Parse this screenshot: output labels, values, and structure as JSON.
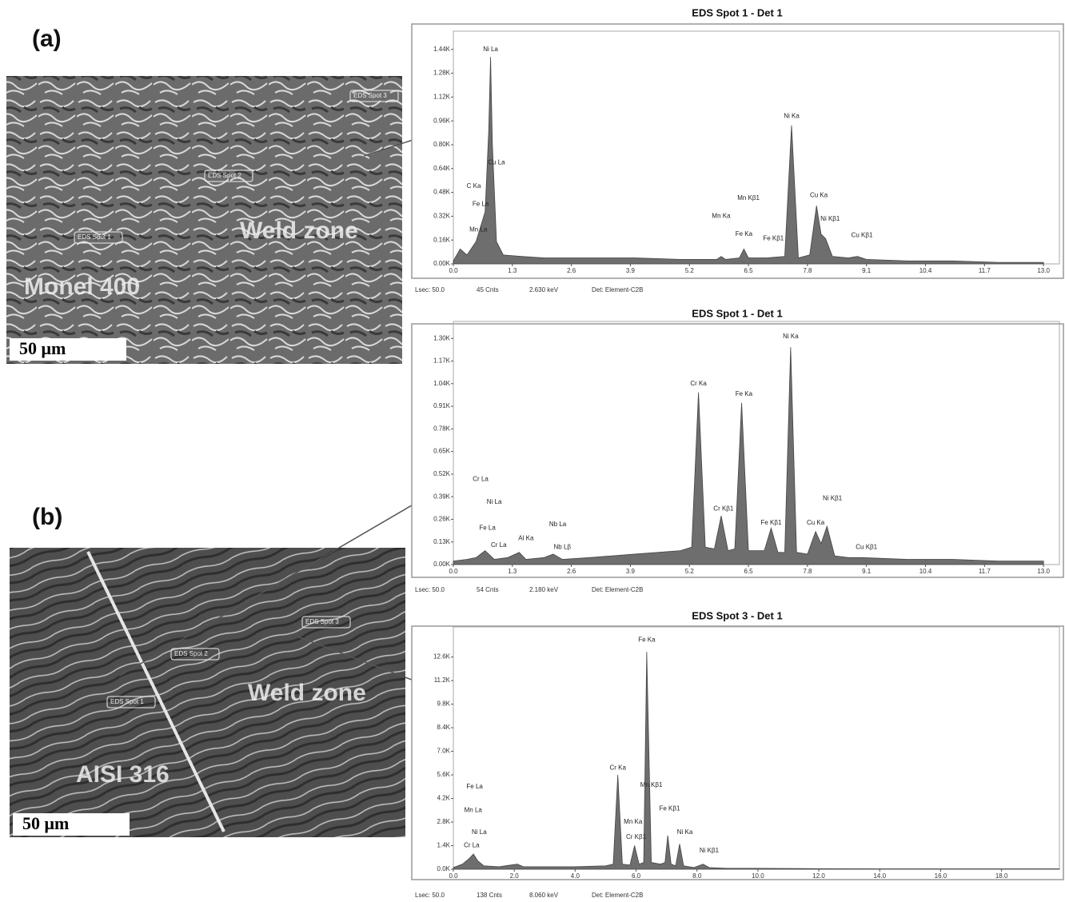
{
  "figure": {
    "panels": [
      {
        "label": "(a)",
        "material": "Monel 400",
        "zone": "Weld zone",
        "scale_bar": "50 μm",
        "spots": [
          "EDS Spot 1",
          "EDS Spot 2",
          "EDS Spot 3"
        ]
      },
      {
        "label": "(b)",
        "material": "AISI 316",
        "zone": "Weld zone",
        "scale_bar": "50 μm",
        "spots": [
          "EDS Spot 1",
          "EDS Spot 2",
          "EDS Spot 3"
        ]
      }
    ]
  },
  "chart_data": [
    {
      "type": "area",
      "title": "EDS Spot 1 - Det 1",
      "color": "#6e6e6e",
      "x": [
        0,
        0.15,
        0.3,
        0.5,
        0.6,
        0.7,
        0.78,
        0.82,
        0.86,
        0.95,
        1.1,
        1.5,
        2.0,
        3.0,
        4.0,
        5.0,
        5.8,
        5.9,
        6.0,
        6.3,
        6.4,
        6.5,
        6.9,
        7.3,
        7.45,
        7.6,
        7.85,
        8.0,
        8.1,
        8.2,
        8.35,
        8.7,
        8.9,
        9.1,
        10,
        11,
        12,
        13
      ],
      "values": [
        0.02,
        0.1,
        0.06,
        0.15,
        0.25,
        0.35,
        0.9,
        1.39,
        0.8,
        0.15,
        0.06,
        0.05,
        0.04,
        0.04,
        0.04,
        0.03,
        0.03,
        0.05,
        0.03,
        0.04,
        0.1,
        0.04,
        0.04,
        0.05,
        0.93,
        0.04,
        0.06,
        0.39,
        0.2,
        0.17,
        0.05,
        0.04,
        0.05,
        0.03,
        0.02,
        0.02,
        0.01,
        0.01
      ],
      "xlim": [
        0,
        13.35
      ],
      "ylim": [
        0,
        1.53
      ],
      "xticks": [
        {
          "value": 0,
          "label": "0.0"
        },
        1.3,
        2.6,
        3.9,
        5.2,
        6.5,
        7.8,
        9.1,
        10.4,
        11.7,
        {
          "value": 13,
          "label": "13.0"
        }
      ],
      "yticks": [
        {
          "value": 0,
          "label": "0.00K"
        },
        {
          "value": 0.16,
          "label": "0.16K"
        },
        {
          "value": 0.32,
          "label": "0.32K"
        },
        {
          "value": 0.48,
          "label": "0.48K"
        },
        {
          "value": 0.64,
          "label": "0.64K"
        },
        {
          "value": 0.8,
          "label": "0.80K"
        },
        {
          "value": 0.96,
          "label": "0.96K"
        },
        {
          "value": 1.12,
          "label": "1.12K"
        },
        {
          "value": 1.28,
          "label": "1.28K"
        },
        {
          "value": 1.44,
          "label": "1.44K"
        }
      ],
      "annotations": [
        {
          "text": "Ni La",
          "x": 0.82,
          "y": 1.44
        },
        {
          "text": "Cu La",
          "x": 0.95,
          "y": 0.68
        },
        {
          "text": "C Ka",
          "x": 0.45,
          "y": 0.52
        },
        {
          "text": "Fe La",
          "x": 0.6,
          "y": 0.4
        },
        {
          "text": "Mn La",
          "x": 0.55,
          "y": 0.23
        },
        {
          "text": "Ni Ka",
          "x": 7.45,
          "y": 0.99
        },
        {
          "text": "Mn Kβ1",
          "x": 6.5,
          "y": 0.44
        },
        {
          "text": "Mn Ka",
          "x": 5.9,
          "y": 0.32
        },
        {
          "text": "Fe Ka",
          "x": 6.4,
          "y": 0.2
        },
        {
          "text": "Fe Kβ1",
          "x": 7.05,
          "y": 0.17
        },
        {
          "text": "Cu Ka",
          "x": 8.05,
          "y": 0.46
        },
        {
          "text": "Ni Kβ1",
          "x": 8.3,
          "y": 0.3
        },
        {
          "text": "Cu Kβ1",
          "x": 9.0,
          "y": 0.19
        }
      ],
      "footer": [
        "Lsec: 50.0",
        "45 Cnts",
        "2.630 keV",
        "Det: Element-C2B"
      ]
    },
    {
      "type": "area",
      "title": "EDS Spot 1 - Det 1",
      "color": "#6e6e6e",
      "x": [
        0,
        0.3,
        0.5,
        0.6,
        0.7,
        0.9,
        1.2,
        1.45,
        1.6,
        2.0,
        2.2,
        2.4,
        3.0,
        4.0,
        5.0,
        5.25,
        5.4,
        5.55,
        5.75,
        5.9,
        6.05,
        6.2,
        6.35,
        6.5,
        6.85,
        7.0,
        7.15,
        7.3,
        7.43,
        7.56,
        7.8,
        7.98,
        8.1,
        8.23,
        8.4,
        8.7,
        9.0,
        10,
        11,
        12,
        13
      ],
      "values": [
        0.02,
        0.03,
        0.04,
        0.06,
        0.08,
        0.03,
        0.04,
        0.07,
        0.03,
        0.04,
        0.06,
        0.03,
        0.04,
        0.06,
        0.08,
        0.1,
        0.99,
        0.1,
        0.09,
        0.28,
        0.08,
        0.09,
        0.93,
        0.08,
        0.08,
        0.21,
        0.07,
        0.07,
        1.25,
        0.07,
        0.06,
        0.19,
        0.12,
        0.22,
        0.05,
        0.04,
        0.04,
        0.03,
        0.03,
        0.02,
        0.02
      ],
      "xlim": [
        0,
        13.35
      ],
      "ylim": [
        0,
        1.37
      ],
      "xticks": [
        {
          "value": 0,
          "label": "0.0"
        },
        1.3,
        2.6,
        3.9,
        5.2,
        6.5,
        7.8,
        9.1,
        10.4,
        11.7,
        {
          "value": 13,
          "label": "13.0"
        }
      ],
      "yticks": [
        {
          "value": 0,
          "label": "0.00K"
        },
        {
          "value": 0.13,
          "label": "0.13K"
        },
        {
          "value": 0.26,
          "label": "0.26K"
        },
        {
          "value": 0.39,
          "label": "0.39K"
        },
        {
          "value": 0.52,
          "label": "0.52K"
        },
        {
          "value": 0.65,
          "label": "0.65K"
        },
        {
          "value": 0.78,
          "label": "0.78K"
        },
        {
          "value": 0.91,
          "label": "0.91K"
        },
        {
          "value": 1.04,
          "label": "1.04K"
        },
        {
          "value": 1.17,
          "label": "1.17K"
        },
        {
          "value": 1.3,
          "label": "1.30K"
        }
      ],
      "annotations": [
        {
          "text": "Cr La",
          "x": 0.6,
          "y": 0.49
        },
        {
          "text": "Ni La",
          "x": 0.9,
          "y": 0.36
        },
        {
          "text": "Fe La",
          "x": 0.75,
          "y": 0.21
        },
        {
          "text": "Cr La",
          "x": 1.0,
          "y": 0.11
        },
        {
          "text": "Al Ka",
          "x": 1.6,
          "y": 0.15
        },
        {
          "text": "Nb La",
          "x": 2.3,
          "y": 0.23
        },
        {
          "text": "Nb Lβ",
          "x": 2.4,
          "y": 0.1
        },
        {
          "text": "Cr Ka",
          "x": 5.4,
          "y": 1.04
        },
        {
          "text": "Cr Kβ1",
          "x": 5.95,
          "y": 0.32
        },
        {
          "text": "Fe Ka",
          "x": 6.4,
          "y": 0.98
        },
        {
          "text": "Fe Kβ1",
          "x": 7.0,
          "y": 0.24
        },
        {
          "text": "Ni Ka",
          "x": 7.43,
          "y": 1.31
        },
        {
          "text": "Ni Kβ1",
          "x": 8.35,
          "y": 0.38
        },
        {
          "text": "Cu Ka",
          "x": 7.98,
          "y": 0.24
        },
        {
          "text": "Cu Kβ1",
          "x": 9.1,
          "y": 0.1
        }
      ],
      "footer": [
        "Lsec: 50.0",
        "54 Cnts",
        "2.180 keV",
        "Det: Element-C2B"
      ]
    },
    {
      "type": "area",
      "title": "EDS Spot 3 - Det 1",
      "color": "#6e6e6e",
      "x": [
        0,
        0.3,
        0.5,
        0.66,
        0.8,
        1.0,
        1.5,
        2.1,
        2.3,
        3.0,
        4.0,
        5.0,
        5.25,
        5.4,
        5.55,
        5.8,
        5.95,
        6.1,
        6.25,
        6.35,
        6.5,
        6.8,
        6.95,
        7.04,
        7.15,
        7.3,
        7.43,
        7.56,
        7.9,
        8.2,
        8.4,
        9,
        10,
        12,
        14,
        16,
        18,
        19.9
      ],
      "values": [
        0.1,
        0.3,
        0.6,
        0.9,
        0.5,
        0.2,
        0.15,
        0.3,
        0.15,
        0.15,
        0.15,
        0.2,
        0.3,
        5.6,
        0.3,
        0.25,
        1.4,
        0.3,
        0.4,
        12.9,
        0.4,
        0.3,
        0.4,
        2.0,
        0.3,
        0.2,
        1.5,
        0.2,
        0.1,
        0.3,
        0.1,
        0.05,
        0.05,
        0.03,
        0.02,
        0.02,
        0.02,
        0.02
      ],
      "xlim": [
        0,
        19.9
      ],
      "ylim": [
        0,
        14.1
      ],
      "xticks": [
        {
          "value": 0,
          "label": "0.0"
        },
        {
          "value": 2,
          "label": "2.0"
        },
        {
          "value": 4,
          "label": "4.0"
        },
        {
          "value": 6,
          "label": "6.0"
        },
        {
          "value": 8,
          "label": "8.0"
        },
        {
          "value": 10,
          "label": "10.0"
        },
        {
          "value": 12,
          "label": "12.0"
        },
        {
          "value": 14,
          "label": "14.0"
        },
        {
          "value": 16,
          "label": "16.0"
        },
        {
          "value": 18,
          "label": "18.0"
        }
      ],
      "yticks": [
        {
          "value": 0,
          "label": "0.0K"
        },
        {
          "value": 1.4,
          "label": "1.4K"
        },
        {
          "value": 2.8,
          "label": "2.8K"
        },
        {
          "value": 4.2,
          "label": "4.2K"
        },
        {
          "value": 5.6,
          "label": "5.6K"
        },
        {
          "value": 7.0,
          "label": "7.0K"
        },
        {
          "value": 8.4,
          "label": "8.4K"
        },
        {
          "value": 9.8,
          "label": "9.8K"
        },
        {
          "value": 11.2,
          "label": "11.2K"
        },
        {
          "value": 12.6,
          "label": "12.6K"
        }
      ],
      "annotations": [
        {
          "text": "Fe Ka",
          "x": 6.35,
          "y": 13.6
        },
        {
          "text": "Cr Ka",
          "x": 5.4,
          "y": 6.0
        },
        {
          "text": "Mn Kβ1",
          "x": 6.5,
          "y": 5.0
        },
        {
          "text": "Fe Kβ1",
          "x": 7.1,
          "y": 3.6
        },
        {
          "text": "Mn Ka",
          "x": 5.9,
          "y": 2.8
        },
        {
          "text": "Cr Kβ1",
          "x": 6.0,
          "y": 1.9
        },
        {
          "text": "Ni Ka",
          "x": 7.6,
          "y": 2.2
        },
        {
          "text": "Ni Kβ1",
          "x": 8.4,
          "y": 1.1
        },
        {
          "text": "Fe La",
          "x": 0.7,
          "y": 4.9
        },
        {
          "text": "Mn La",
          "x": 0.65,
          "y": 3.5
        },
        {
          "text": "Ni La",
          "x": 0.85,
          "y": 2.2
        },
        {
          "text": "Cr La",
          "x": 0.6,
          "y": 1.4
        }
      ],
      "footer": [
        "Lsec: 50.0",
        "138 Cnts",
        "8.060 keV",
        "Det: Element-C2B"
      ]
    }
  ]
}
